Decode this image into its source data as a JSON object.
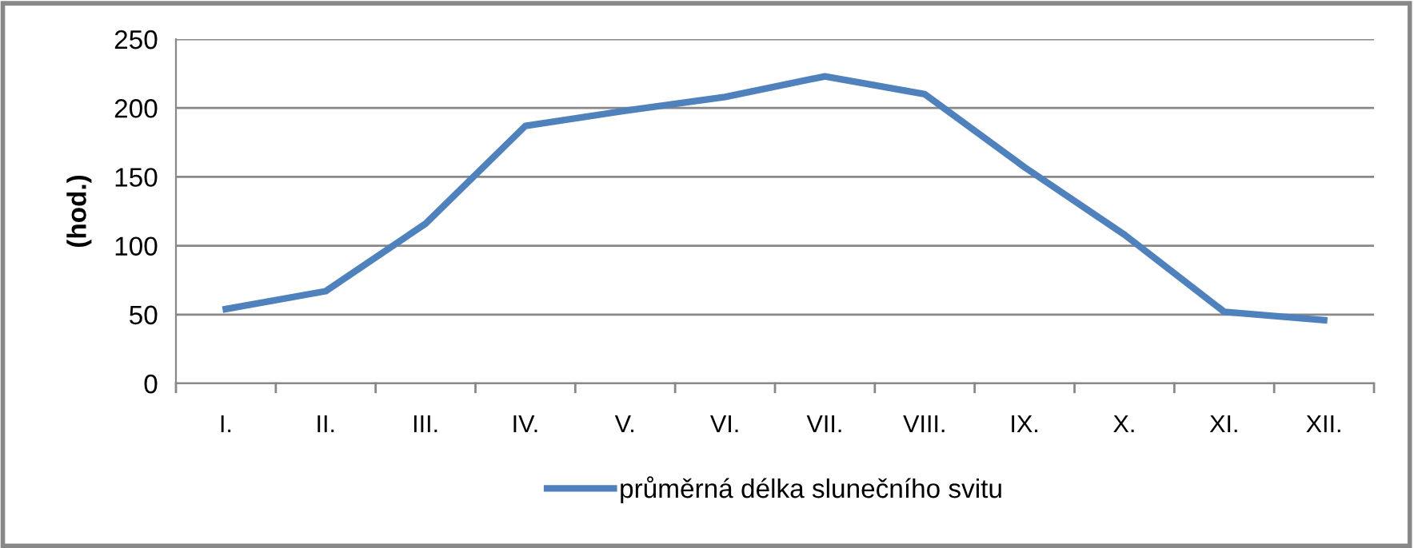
{
  "chart_data": {
    "type": "line",
    "ylabel": "(hod.)",
    "categories": [
      "I.",
      "II.",
      "III.",
      "IV.",
      "V.",
      "VI.",
      "VII.",
      "VIII.",
      "IX.",
      "X.",
      "XI.",
      "XII."
    ],
    "series": [
      {
        "name": "průměrná délka slunečního svitu",
        "color": "#4f81bd",
        "values": [
          54,
          67,
          116,
          187,
          198,
          208,
          223,
          210,
          157,
          108,
          52,
          46
        ]
      }
    ],
    "ylim": [
      0,
      250
    ],
    "yticks": [
      0,
      50,
      100,
      150,
      200,
      250
    ],
    "grid": "y",
    "legend": "bottom",
    "marker": "none",
    "line_style": "solid"
  }
}
